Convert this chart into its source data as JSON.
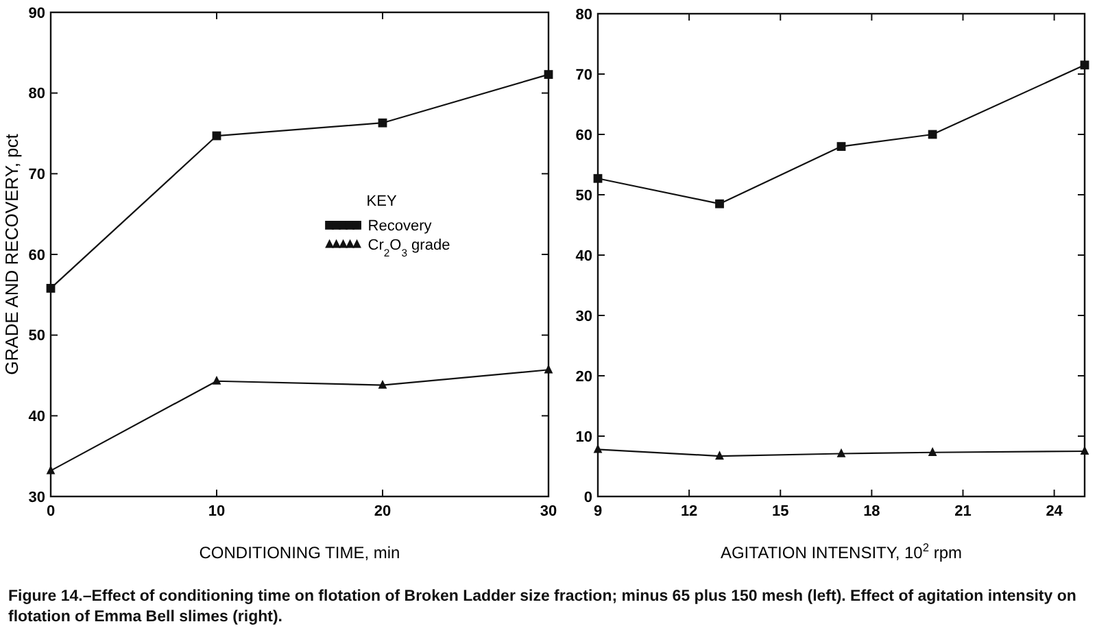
{
  "chart_data": [
    {
      "type": "line",
      "xlabel": "CONDITIONING TIME, min",
      "ylabel": "GRADE AND RECOVERY, pct",
      "legend_title": "KEY",
      "legend": "center right",
      "x": [
        0,
        10,
        20,
        30
      ],
      "xlim": [
        0,
        30
      ],
      "xticks": [
        0,
        10,
        20,
        30
      ],
      "ylim": [
        30,
        90
      ],
      "yticks": [
        30,
        40,
        50,
        60,
        70,
        80,
        90
      ],
      "series": [
        {
          "name": "Recovery",
          "color": "#111111",
          "marker": "square",
          "values": [
            55.8,
            74.7,
            76.3,
            82.3
          ]
        },
        {
          "name": "Cr$_{2}$O$_{3}$ grade",
          "color": "#111111",
          "marker": "triangle",
          "values": [
            33.2,
            44.3,
            43.8,
            45.7
          ]
        }
      ],
      "annotations": [
        "Figure 14.–Effect of conditioning time on flotation of Broken Ladder size fraction; minus 65 plus 150 mesh (left).  Effect of agitation intensity on flotation of Emma Bell slimes (right)."
      ]
    },
    {
      "type": "line",
      "xlabel": "AGITATION INTENSITY, 10$^{2}$ rpm",
      "x": [
        9,
        13,
        17,
        20,
        25
      ],
      "xlim": [
        9,
        25
      ],
      "xticks": [
        9,
        12,
        15,
        18,
        21,
        24
      ],
      "ylim": [
        0,
        80
      ],
      "yticks": [
        0,
        10,
        20,
        30,
        40,
        50,
        60,
        70,
        80
      ],
      "series": [
        {
          "color": "#111111",
          "marker": "square",
          "values": [
            52.7,
            48.5,
            58,
            60,
            71.5
          ]
        },
        {
          "color": "#111111",
          "marker": "triangle",
          "values": [
            7.8,
            6.7,
            7.1,
            7.3,
            7.5
          ]
        }
      ]
    }
  ]
}
